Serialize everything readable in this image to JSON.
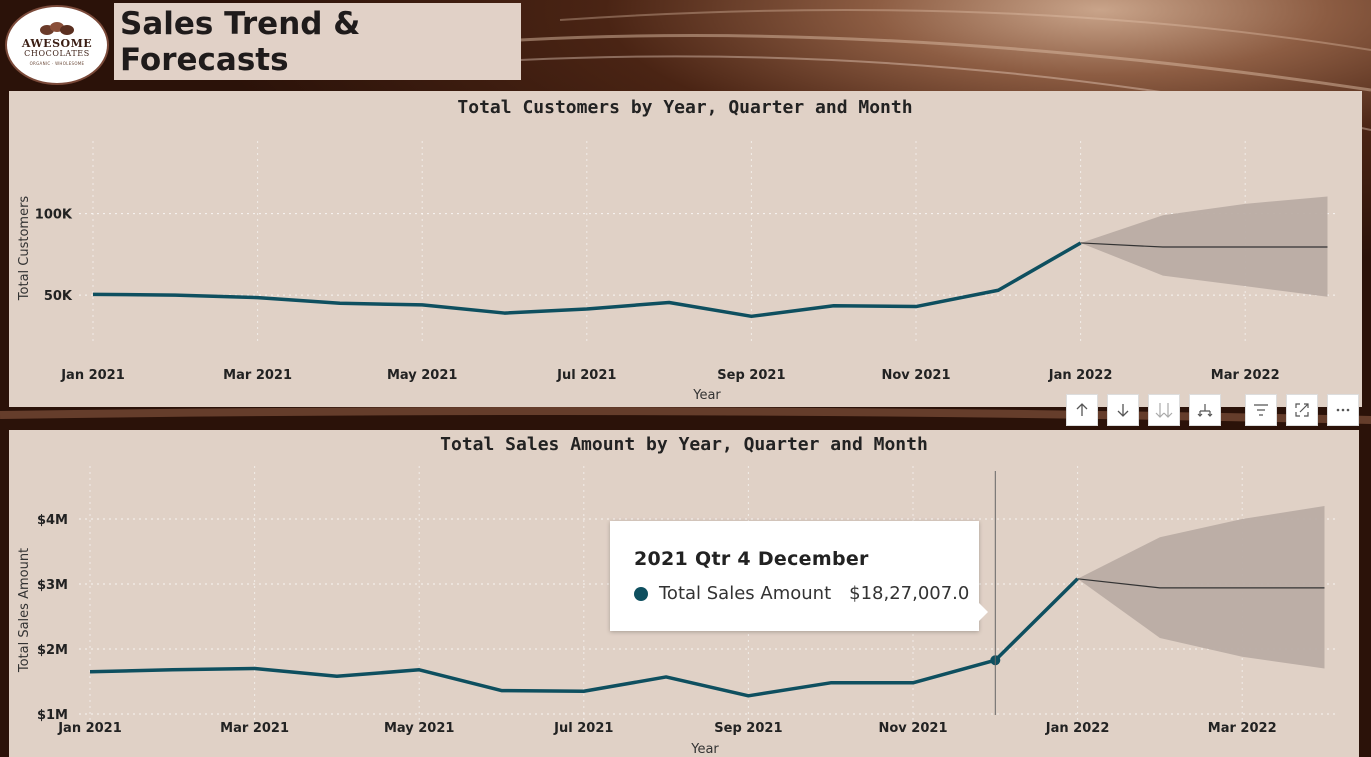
{
  "logo": {
    "line1": "AWESOME",
    "line2": "CHOCOLATES",
    "line3": "ORGANIC · WHOLESOME"
  },
  "header": {
    "title": "Sales Trend & Forecasts"
  },
  "colors": {
    "line": "#0e4f5f",
    "forecast_band": "#b9aca4",
    "panel_bg": "#e0d1c6"
  },
  "toolbar": {
    "icons": [
      "drill-up-icon",
      "drill-down-icon",
      "expand-all-levels-icon",
      "drill-hierarchy-icon",
      "filter-icon",
      "focus-mode-icon",
      "more-options-icon"
    ]
  },
  "tooltip": {
    "title": "2021 Qtr 4 December",
    "series": "Total Sales Amount",
    "value": "$18,27,007.0"
  },
  "chart_data": [
    {
      "type": "line",
      "title": "Total Customers by Year, Quarter and Month",
      "xlabel": "Year",
      "ylabel": "Total Customers",
      "x": [
        "2021-01",
        "2021-02",
        "2021-03",
        "2021-04",
        "2021-05",
        "2021-06",
        "2021-07",
        "2021-08",
        "2021-09",
        "2021-10",
        "2021-11",
        "2021-12",
        "2022-01"
      ],
      "tick_labels": [
        "Jan 2021",
        "Mar 2021",
        "May 2021",
        "Jul 2021",
        "Sep 2021",
        "Nov 2021",
        "Jan 2022",
        "Mar 2022"
      ],
      "yticks": [
        {
          "value": 50000,
          "label": "50K"
        },
        {
          "value": 100000,
          "label": "100K"
        }
      ],
      "ylim": [
        28000,
        120000
      ],
      "series": [
        {
          "name": "Total Customers",
          "values": [
            50500,
            50000,
            48500,
            45000,
            44000,
            39000,
            41500,
            45500,
            37000,
            43500,
            43000,
            53000,
            82000
          ]
        }
      ],
      "forecast": {
        "x": [
          "2022-01",
          "2022-02",
          "2022-03",
          "2022-04"
        ],
        "values": [
          82000,
          79500,
          79500,
          79500
        ],
        "upper": [
          82000,
          99000,
          106000,
          110500
        ],
        "lower": [
          82000,
          62000,
          55500,
          49000
        ]
      },
      "grid": true
    },
    {
      "type": "line",
      "title": "Total Sales Amount by Year, Quarter and Month",
      "xlabel": "Year",
      "ylabel": "Total Sales Amount",
      "x": [
        "2021-01",
        "2021-02",
        "2021-03",
        "2021-04",
        "2021-05",
        "2021-06",
        "2021-07",
        "2021-08",
        "2021-09",
        "2021-10",
        "2021-11",
        "2021-12",
        "2022-01"
      ],
      "tick_labels": [
        "Jan 2021",
        "Mar 2021",
        "May 2021",
        "Jul 2021",
        "Sep 2021",
        "Nov 2021",
        "Jan 2022",
        "Mar 2022"
      ],
      "yticks": [
        {
          "value": 1000000,
          "label": "$1M"
        },
        {
          "value": 2000000,
          "label": "$2M"
        },
        {
          "value": 3000000,
          "label": "$3M"
        },
        {
          "value": 4000000,
          "label": "$4M"
        }
      ],
      "ylim": [
        1000000,
        4200000
      ],
      "series": [
        {
          "name": "Total Sales Amount",
          "values": [
            1650000,
            1680000,
            1700000,
            1580000,
            1680000,
            1360000,
            1350000,
            1570000,
            1280000,
            1480000,
            1480000,
            1827007,
            3080000
          ]
        }
      ],
      "forecast": {
        "x": [
          "2022-01",
          "2022-02",
          "2022-03",
          "2022-04"
        ],
        "values": [
          3080000,
          2940000,
          2940000,
          2940000
        ],
        "upper": [
          3080000,
          3720000,
          4000000,
          4200000
        ],
        "lower": [
          3080000,
          2170000,
          1880000,
          1700000
        ]
      },
      "highlight_index": 11,
      "grid": true
    }
  ]
}
